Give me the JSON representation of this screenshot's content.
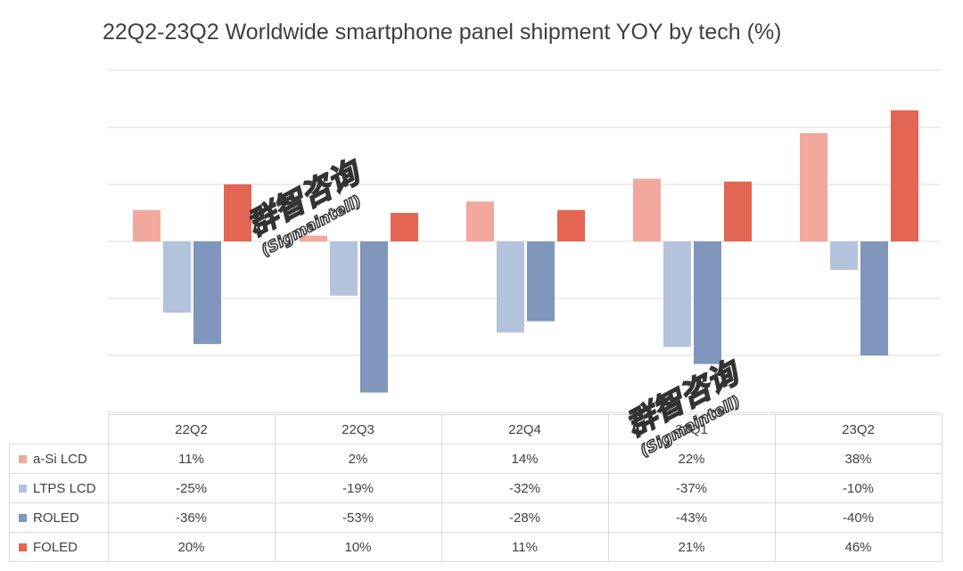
{
  "chart_data": {
    "type": "bar",
    "title": "22Q2-23Q2 Worldwide smartphone panel shipment YOY by tech (%)",
    "categories": [
      "22Q2",
      "22Q3",
      "22Q4",
      "23Q1",
      "23Q2"
    ],
    "series": [
      {
        "name": "a-Si LCD",
        "color": "#f2a89c",
        "values": [
          11,
          2,
          14,
          22,
          38
        ],
        "labels": [
          "11%",
          "2%",
          "14%",
          "22%",
          "38%"
        ]
      },
      {
        "name": "LTPS LCD",
        "color": "#b4c3dc",
        "values": [
          -25,
          -19,
          -32,
          -37,
          -10
        ],
        "labels": [
          "-25%",
          "-19%",
          "-32%",
          "-37%",
          "-10%"
        ]
      },
      {
        "name": "ROLED",
        "color": "#8096bc",
        "values": [
          -36,
          -53,
          -28,
          -43,
          -40
        ],
        "labels": [
          "-36%",
          "-53%",
          "-28%",
          "-43%",
          "-40%"
        ]
      },
      {
        "name": "FOLED",
        "color": "#e26651",
        "values": [
          20,
          10,
          11,
          21,
          46
        ],
        "labels": [
          "20%",
          "10%",
          "11%",
          "21%",
          "46%"
        ]
      }
    ],
    "ylim": [
      -60,
      60
    ],
    "grid": true,
    "legend": "data-table-below"
  },
  "watermarks": [
    {
      "text": "群智咨询",
      "sub": "(Sigmaintell)"
    },
    {
      "text": "群智咨询",
      "sub": "(Sigmaintell)"
    }
  ]
}
